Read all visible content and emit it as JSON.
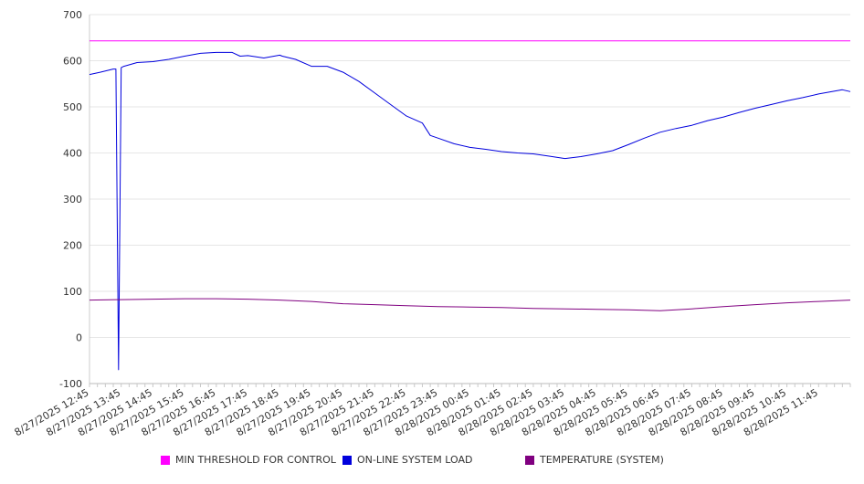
{
  "chart_data": {
    "type": "line",
    "title": "",
    "xlabel": "",
    "ylabel": "",
    "ylim": [
      -100,
      700
    ],
    "yticks": [
      -100,
      0,
      100,
      200,
      300,
      400,
      500,
      600,
      700
    ],
    "grid": true,
    "legend_position": "bottom",
    "x_tick_labels": [
      "8/27/2025 12:45",
      "8/27/2025 13:45",
      "8/27/2025 14:45",
      "8/27/2025 15:45",
      "8/27/2025 16:45",
      "8/27/2025 17:45",
      "8/27/2025 18:45",
      "8/27/2025 19:45",
      "8/27/2025 20:45",
      "8/27/2025 21:45",
      "8/27/2025 22:45",
      "8/27/2025 23:45",
      "8/28/2025 00:45",
      "8/28/2025 01:45",
      "8/28/2025 02:45",
      "8/28/2025 03:45",
      "8/28/2025 04:45",
      "8/28/2025 05:45",
      "8/28/2025 06:45",
      "8/28/2025 07:45",
      "8/28/2025 08:45",
      "8/28/2025 09:45",
      "8/28/2025 10:45",
      "8/28/2025 11:45"
    ],
    "series": [
      {
        "name": "MIN THRESHOLD FOR CONTROL",
        "color": "#ff00ff",
        "x": [
          "8/27/2025 12:45",
          "8/28/2025 12:45"
        ],
        "values": [
          643,
          643
        ]
      },
      {
        "name": "ON-LINE SYSTEM LOAD",
        "color": "#0000dd",
        "x": [
          "8/27/2025 12:45",
          "8/27/2025 13:05",
          "8/27/2025 13:30",
          "8/27/2025 13:35",
          "8/27/2025 13:40",
          "8/27/2025 13:45",
          "8/27/2025 13:50",
          "8/27/2025 14:15",
          "8/27/2025 14:45",
          "8/27/2025 15:15",
          "8/27/2025 15:45",
          "8/27/2025 16:15",
          "8/27/2025 16:45",
          "8/27/2025 17:15",
          "8/27/2025 17:30",
          "8/27/2025 17:45",
          "8/27/2025 18:15",
          "8/27/2025 18:45",
          "8/27/2025 18:50",
          "8/27/2025 19:15",
          "8/27/2025 19:45",
          "8/27/2025 20:15",
          "8/27/2025 20:45",
          "8/27/2025 21:15",
          "8/27/2025 21:45",
          "8/27/2025 22:15",
          "8/27/2025 22:45",
          "8/27/2025 23:15",
          "8/27/2025 23:30",
          "8/27/2025 23:45",
          "8/28/2025 00:15",
          "8/28/2025 00:45",
          "8/28/2025 01:15",
          "8/28/2025 01:45",
          "8/28/2025 02:15",
          "8/28/2025 02:45",
          "8/28/2025 03:15",
          "8/28/2025 03:45",
          "8/28/2025 04:15",
          "8/28/2025 04:45",
          "8/28/2025 05:15",
          "8/28/2025 05:45",
          "8/28/2025 06:15",
          "8/28/2025 06:45",
          "8/28/2025 07:15",
          "8/28/2025 07:45",
          "8/28/2025 08:15",
          "8/28/2025 08:45",
          "8/28/2025 09:15",
          "8/28/2025 09:45",
          "8/28/2025 10:15",
          "8/28/2025 10:45",
          "8/28/2025 11:15",
          "8/28/2025 11:45",
          "8/28/2025 12:30",
          "8/28/2025 12:45"
        ],
        "values": [
          570,
          575,
          582,
          582,
          -70,
          585,
          588,
          596,
          598,
          603,
          610,
          616,
          618,
          618,
          610,
          611,
          606,
          612,
          610,
          603,
          588,
          588,
          575,
          555,
          530,
          505,
          480,
          465,
          438,
          432,
          420,
          412,
          408,
          403,
          400,
          398,
          393,
          388,
          392,
          398,
          405,
          418,
          432,
          445,
          453,
          460,
          470,
          478,
          488,
          497,
          505,
          513,
          520,
          528,
          537,
          533
        ]
      },
      {
        "name": "TEMPERATURE (SYSTEM)",
        "color": "#800080",
        "x": [
          "8/27/2025 12:45",
          "8/27/2025 13:45",
          "8/27/2025 14:45",
          "8/27/2025 15:45",
          "8/27/2025 16:45",
          "8/27/2025 17:45",
          "8/27/2025 18:45",
          "8/27/2025 19:45",
          "8/27/2025 20:45",
          "8/27/2025 21:45",
          "8/27/2025 22:45",
          "8/27/2025 23:45",
          "8/28/2025 00:45",
          "8/28/2025 01:45",
          "8/28/2025 02:45",
          "8/28/2025 03:45",
          "8/28/2025 04:45",
          "8/28/2025 05:45",
          "8/28/2025 06:45",
          "8/28/2025 07:45",
          "8/28/2025 08:45",
          "8/28/2025 09:45",
          "8/28/2025 10:45",
          "8/28/2025 11:45",
          "8/28/2025 12:45"
        ],
        "values": [
          81,
          82,
          83,
          84,
          84,
          83,
          81,
          78,
          73,
          71,
          69,
          67,
          66,
          65,
          63,
          62,
          61,
          60,
          58,
          62,
          67,
          71,
          75,
          78,
          81
        ]
      }
    ]
  }
}
